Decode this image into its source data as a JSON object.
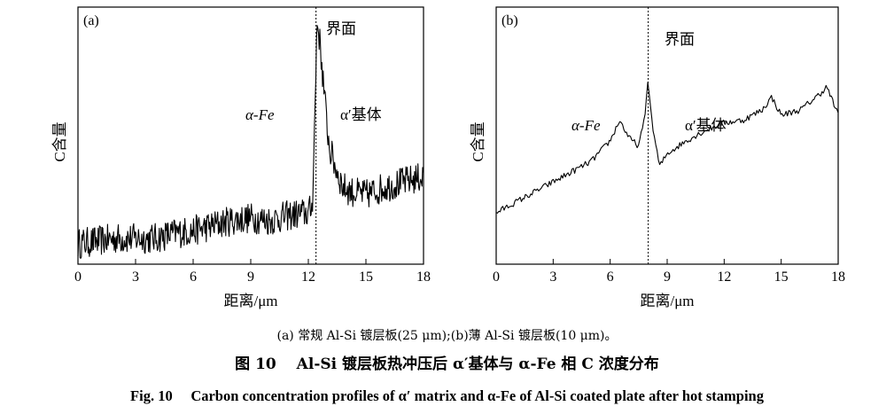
{
  "chart_data": [
    {
      "type": "line",
      "panel_label": "(a)",
      "xlabel": "距离/μm",
      "ylabel": "C含量",
      "xlim": [
        0,
        18
      ],
      "x_ticks": [
        0,
        3,
        6,
        9,
        12,
        15,
        18
      ],
      "x_tick_labels": [
        "0",
        "3",
        "6",
        "9",
        "12",
        "15",
        "18"
      ],
      "y_ticks_shown": false,
      "interface_x": 12.4,
      "interface_label": "界面",
      "region_labels": [
        "α-Fe",
        "α′基体"
      ],
      "series": [
        {
          "style": "noisy",
          "x": [
            0,
            1,
            2,
            3,
            4,
            5,
            6,
            7,
            8,
            9,
            10,
            11,
            12,
            12.2,
            12.35,
            12.45,
            12.55,
            12.7,
            12.9,
            13.1,
            13.4,
            13.8,
            14.3,
            15,
            16,
            17,
            18
          ],
          "y": [
            0.08,
            0.09,
            0.1,
            0.1,
            0.1,
            0.12,
            0.13,
            0.15,
            0.17,
            0.18,
            0.17,
            0.19,
            0.2,
            0.22,
            0.6,
            0.95,
            0.9,
            0.78,
            0.6,
            0.45,
            0.38,
            0.3,
            0.28,
            0.27,
            0.3,
            0.32,
            0.34
          ]
        }
      ]
    },
    {
      "type": "line",
      "panel_label": "(b)",
      "xlabel": "距离/μm",
      "ylabel": "C含量",
      "xlim": [
        0,
        18
      ],
      "x_ticks": [
        0,
        3,
        6,
        9,
        12,
        15,
        18
      ],
      "x_tick_labels": [
        "0",
        "3",
        "6",
        "9",
        "12",
        "15",
        "18"
      ],
      "y_ticks_shown": false,
      "interface_x": 8,
      "interface_label": "界面",
      "region_labels": [
        "α-Fe",
        "α′基体"
      ],
      "series": [
        {
          "style": "smooth",
          "x": [
            0,
            1,
            2,
            3,
            4,
            5,
            6,
            6.5,
            7,
            7.5,
            7.8,
            8,
            8.2,
            8.6,
            9,
            10,
            11,
            12,
            13,
            14,
            14.5,
            15,
            16,
            17,
            17.4,
            18
          ],
          "y": [
            0.2,
            0.24,
            0.28,
            0.32,
            0.36,
            0.4,
            0.48,
            0.56,
            0.49,
            0.46,
            0.56,
            0.72,
            0.55,
            0.38,
            0.43,
            0.48,
            0.52,
            0.55,
            0.56,
            0.6,
            0.65,
            0.58,
            0.6,
            0.66,
            0.69,
            0.58
          ]
        }
      ]
    }
  ],
  "captions": {
    "sub": "(a) 常规 Al-Si 镀层板(25 μm);(b)薄 Al-Si 镀层板(10 μm)。",
    "zh": "图 10　 Al-Si 镀层板热冲压后 α′基体与 α-Fe 相 C 浓度分布",
    "en": "Fig. 10　 Carbon concentration profiles of α′ matrix and α-Fe of Al-Si coated plate after hot stamping"
  }
}
